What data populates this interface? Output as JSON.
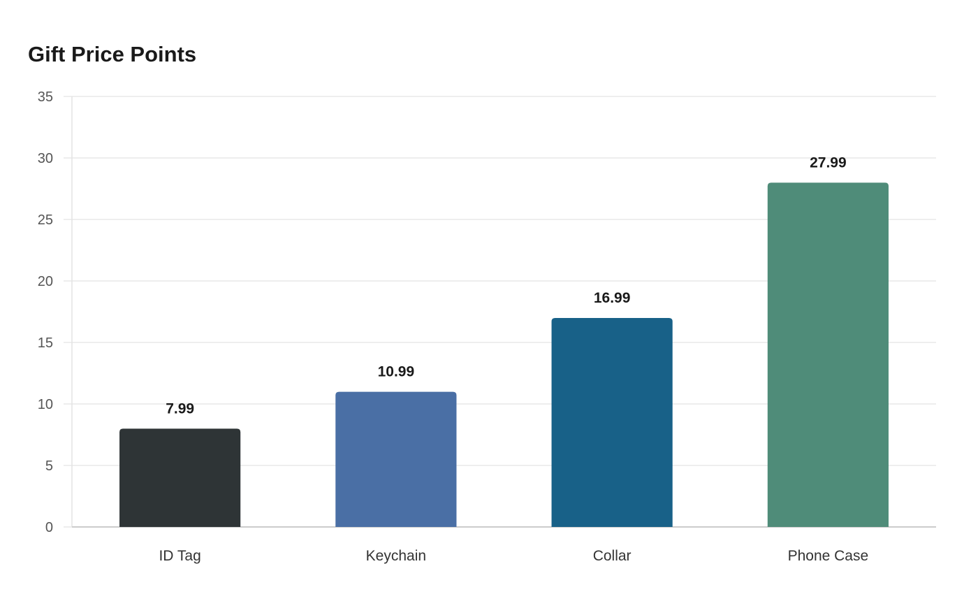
{
  "chart_data": {
    "type": "bar",
    "title": "Gift Price Points",
    "xlabel": "",
    "ylabel": "",
    "categories": [
      "ID Tag",
      "Keychain",
      "Collar",
      "Phone Case"
    ],
    "values": [
      7.99,
      10.99,
      16.99,
      27.99
    ],
    "value_labels": [
      "7.99",
      "10.99",
      "16.99",
      "27.99"
    ],
    "colors": [
      "#2e3436",
      "#4a6fa5",
      "#186188",
      "#4f8c79"
    ],
    "ylim": [
      0,
      35
    ],
    "yticks": [
      0,
      5,
      10,
      15,
      20,
      25,
      30,
      35
    ],
    "grid": true,
    "legend": "none"
  }
}
